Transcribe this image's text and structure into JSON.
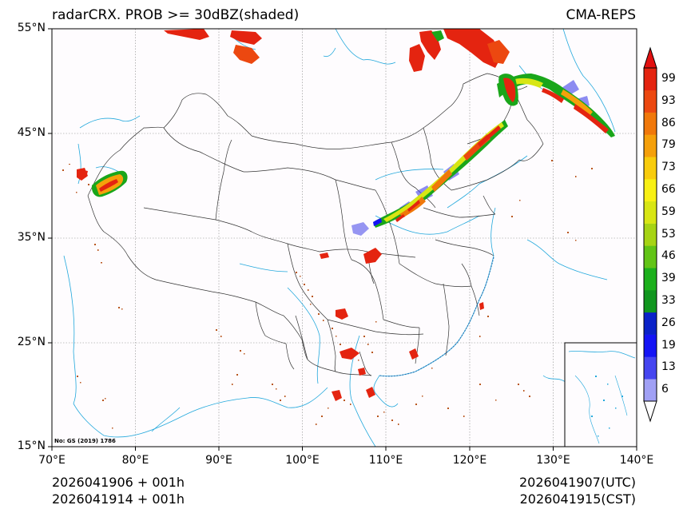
{
  "title": {
    "left": "radarCRX. PROB >= 30dBZ(shaded)",
    "right": "CMA-REPS"
  },
  "axes": {
    "lat_labels": [
      "55°N",
      "45°N",
      "35°N",
      "25°N",
      "15°N"
    ],
    "lon_labels": [
      "70°E",
      "80°E",
      "90°E",
      "100°E",
      "110°E",
      "120°E",
      "130°E",
      "140°E"
    ]
  },
  "map_notice": "No: GS (2019) 1786",
  "footer": {
    "init_utc": "2026041906  +  001h",
    "init_cst": "2026041914  +  001h",
    "valid_utc": "2026041907(UTC)",
    "valid_cst": "2026041915(CST)"
  },
  "colorbar": {
    "labels": [
      "99",
      "93",
      "86",
      "79",
      "73",
      "66",
      "59",
      "53",
      "46",
      "39",
      "33",
      "26",
      "19",
      "13",
      "6"
    ],
    "colors": [
      "#a0a0f5",
      "#4545f0",
      "#1414f5",
      "#0a22c8",
      "#10961e",
      "#1cb01c",
      "#62c416",
      "#a6d414",
      "#d8e614",
      "#f8f014",
      "#f8cc0c",
      "#f5a00a",
      "#f0780a",
      "#ec4810",
      "#e42410"
    ],
    "over_color": "#e21010",
    "under_color": "#ffffff"
  },
  "colors": {
    "coast": "#22a8dc",
    "border": "#333333",
    "grid": "#888888",
    "low_prob": "#b9561f"
  }
}
